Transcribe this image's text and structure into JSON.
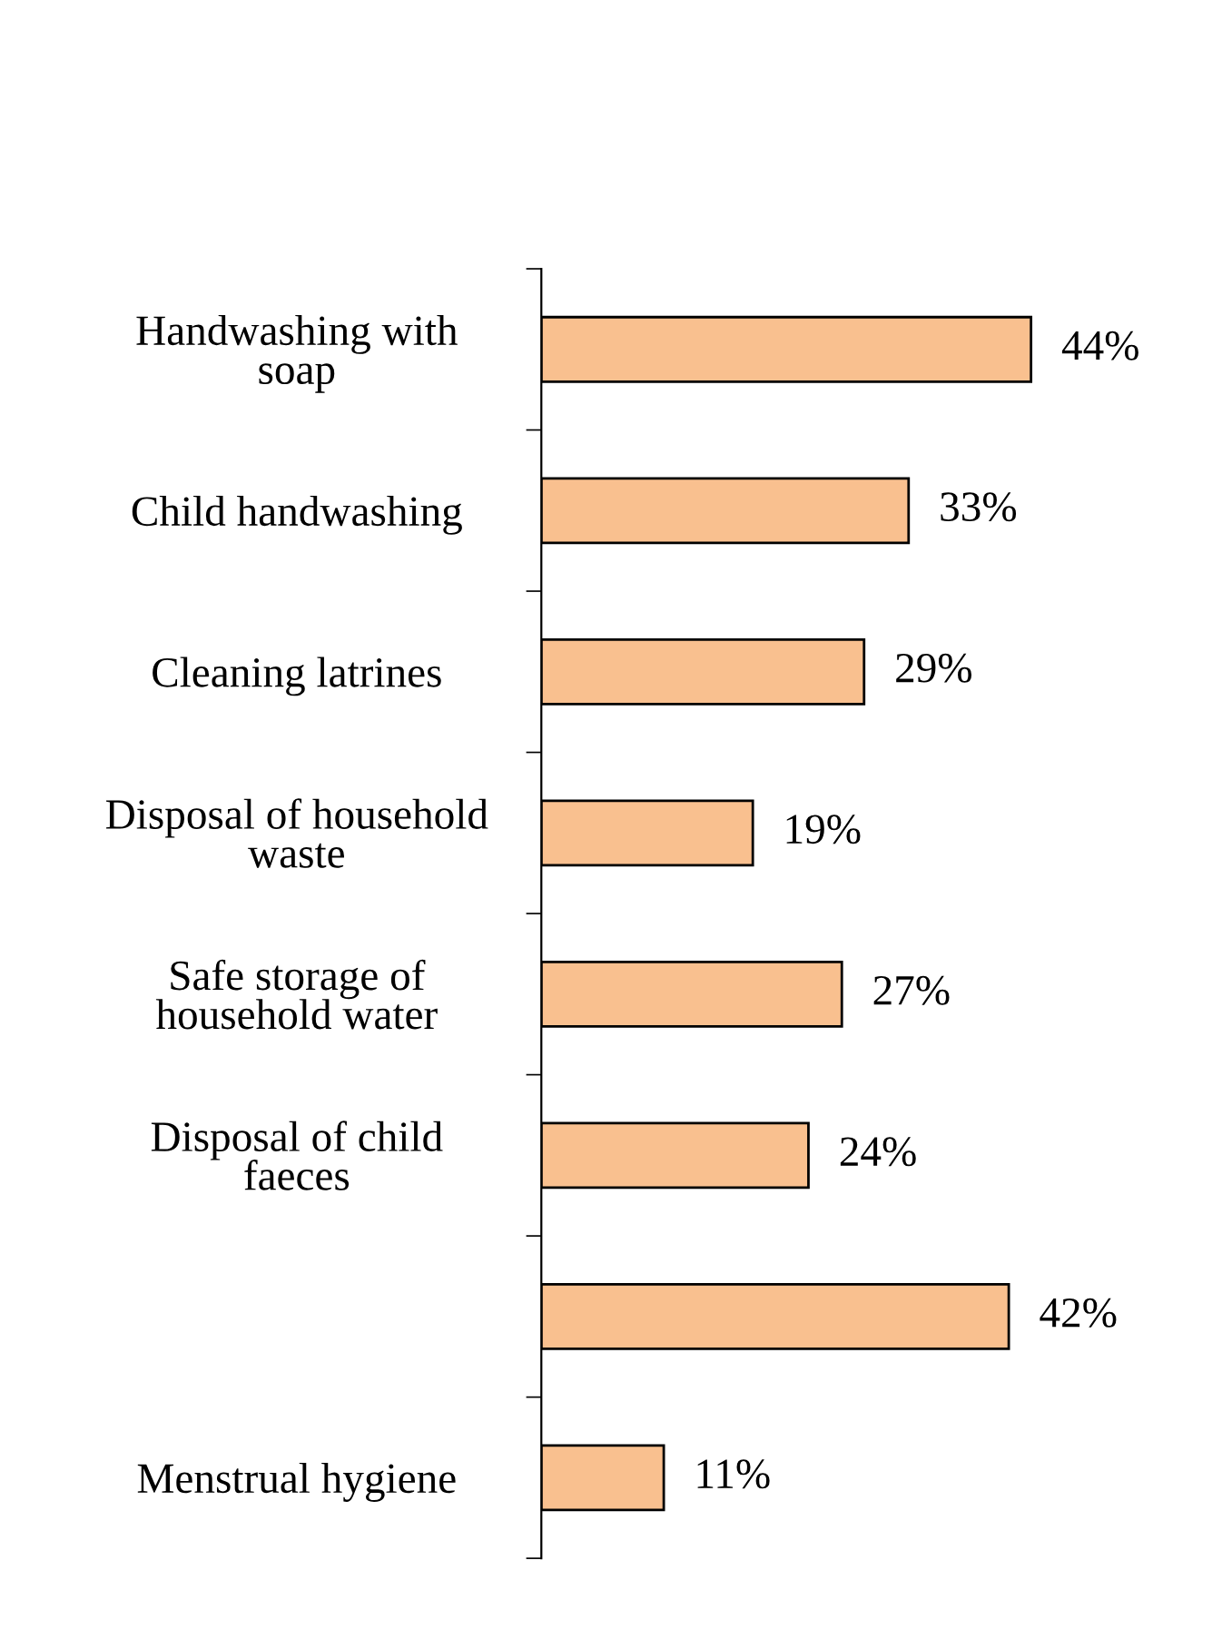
{
  "chart_data": {
    "type": "bar",
    "orientation": "horizontal",
    "categories": [
      "Handwashing with\nsoap",
      "Child handwashing",
      "Cleaning latrines",
      "Disposal of household\nwaste",
      "Safe storage of\nhousehold water",
      "Disposal of child\nfaeces",
      null,
      "Menstrual hygiene"
    ],
    "values": [
      44,
      33,
      29,
      19,
      27,
      24,
      42,
      11
    ],
    "value_labels": [
      "44%",
      "33%",
      "29%",
      "19%",
      "27%",
      "24%",
      "42%",
      "11%"
    ],
    "color": "#f9c08f",
    "grid": false,
    "legend": false,
    "tick_labels": "y"
  }
}
